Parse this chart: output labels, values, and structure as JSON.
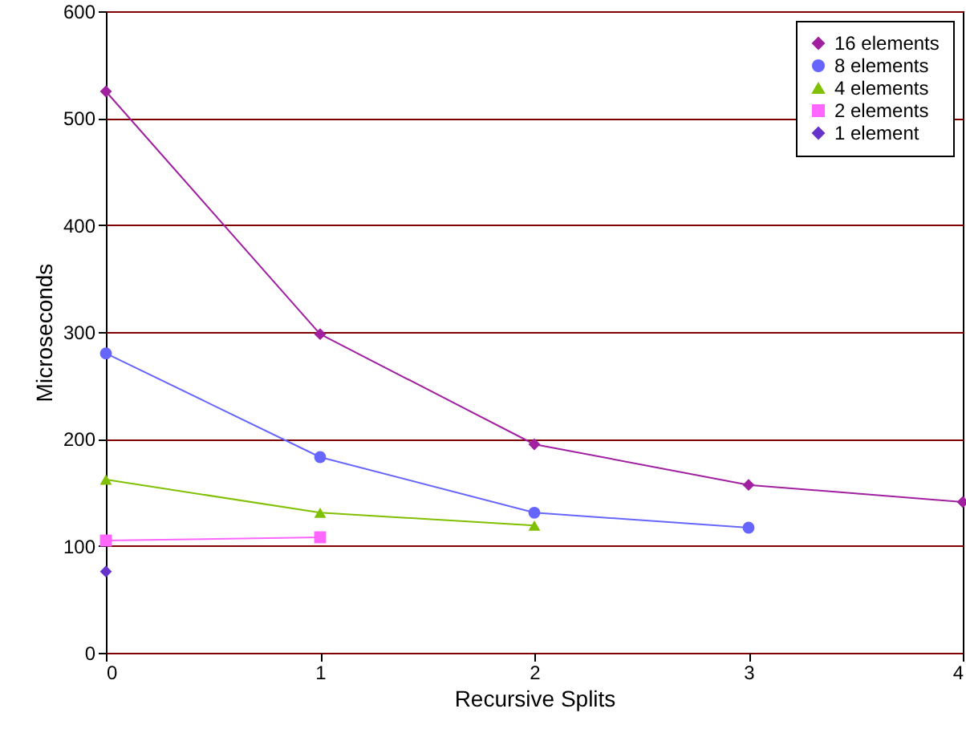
{
  "chart_data": {
    "type": "line",
    "xlabel": "Recursive Splits",
    "ylabel": "Microseconds",
    "x": [
      0,
      1,
      2,
      3,
      4
    ],
    "xlim": [
      0,
      4
    ],
    "xticks": [
      0,
      1,
      2,
      3,
      4
    ],
    "ylim": [
      0,
      600
    ],
    "yticks": [
      0,
      100,
      200,
      300,
      400,
      500,
      600
    ],
    "grid": "y",
    "legend": "top right",
    "series": [
      {
        "name": "16 elements",
        "color": "#a020a0",
        "marker": "diamond",
        "values": [
          525,
          298,
          195,
          157,
          141
        ]
      },
      {
        "name": "8 elements",
        "color": "#6666ff",
        "marker": "circle",
        "values": [
          280,
          183,
          131,
          117,
          null
        ]
      },
      {
        "name": "4 elements",
        "color": "#80c000",
        "marker": "triangle",
        "values": [
          162,
          131,
          119,
          null,
          null
        ]
      },
      {
        "name": "2 elements",
        "color": "#ff66ff",
        "marker": "square",
        "values": [
          105,
          108,
          null,
          null,
          null
        ]
      },
      {
        "name": "1 element",
        "color": "#6633cc",
        "marker": "diamond",
        "values": [
          76,
          null,
          null,
          null,
          null
        ]
      }
    ]
  }
}
